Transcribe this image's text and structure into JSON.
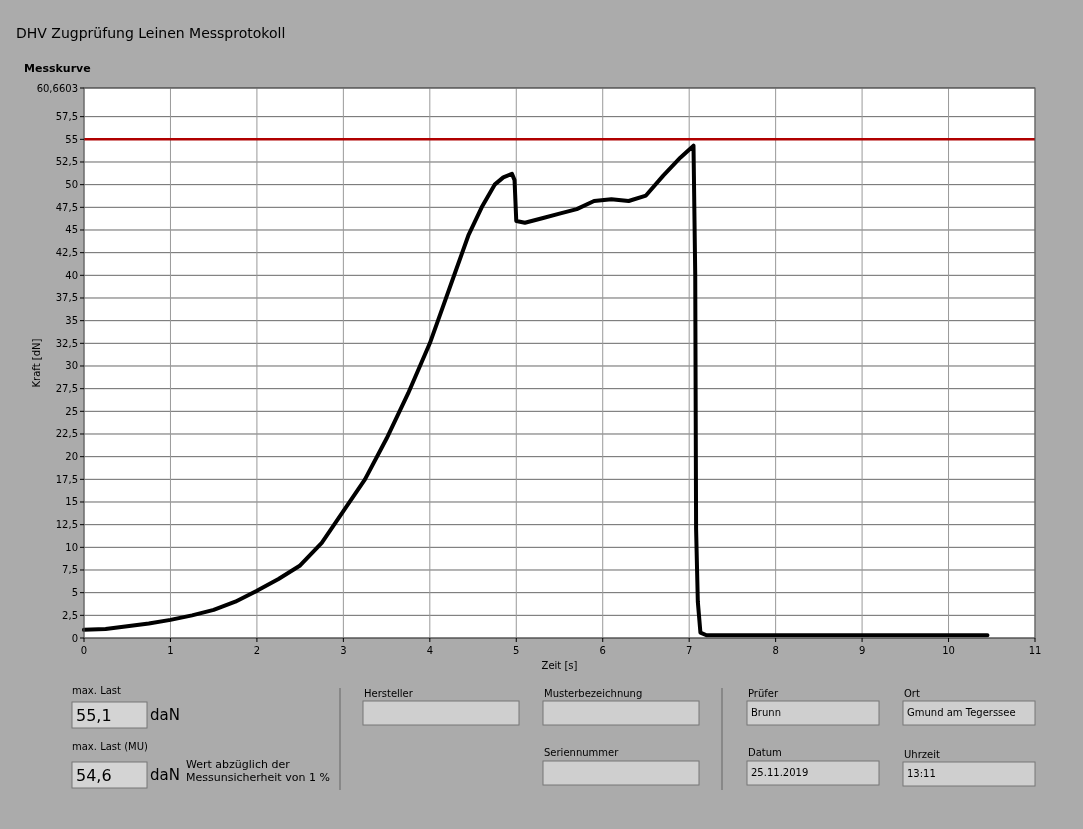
{
  "chart_data": {
    "type": "line",
    "title": "DHV Zugprüfung Leinen Messprotokoll",
    "subtitle": "Messkurve",
    "xlabel": "Zeit [s]",
    "ylabel": "Kraft [dN]",
    "xlim": [
      0,
      11
    ],
    "xticks": [
      0,
      1,
      2,
      3,
      4,
      5,
      6,
      7,
      8,
      9,
      10,
      11
    ],
    "ylim": [
      0,
      60.6603
    ],
    "yticks": [
      0,
      {
        "value": 2.5,
        "label": "2,5"
      },
      5,
      {
        "value": 7.5,
        "label": "7,5"
      },
      10,
      {
        "value": 12.5,
        "label": "12,5"
      },
      15,
      {
        "value": 17.5,
        "label": "17,5"
      },
      20,
      {
        "value": 22.5,
        "label": "22,5"
      },
      25,
      {
        "value": 27.5,
        "label": "27,5"
      },
      30,
      {
        "value": 32.5,
        "label": "32,5"
      },
      35,
      {
        "value": 37.5,
        "label": "37,5"
      },
      40,
      {
        "value": 42.5,
        "label": "42,5"
      },
      45,
      {
        "value": 47.5,
        "label": "47,5"
      },
      50,
      {
        "value": 52.5,
        "label": "52,5"
      },
      55,
      {
        "value": 57.5,
        "label": "57,5"
      },
      {
        "value": 60.6603,
        "label": "60,6603"
      }
    ],
    "grid": true,
    "series": [
      {
        "color": "#000000",
        "x": [
          0,
          0.25,
          0.5,
          0.75,
          1,
          1.25,
          1.5,
          1.75,
          2,
          2.25,
          2.5,
          2.75,
          3,
          3.25,
          3.5,
          3.75,
          4,
          4.15,
          4.3,
          4.45,
          4.6,
          4.75,
          4.85,
          4.95,
          4.98,
          5.0,
          5.1,
          5.3,
          5.5,
          5.7,
          5.9,
          6.1,
          6.3,
          6.5,
          6.7,
          6.9,
          7.05,
          7.07,
          7.08,
          7.1,
          7.13,
          7.2,
          8,
          9,
          10,
          10.45
        ],
        "values": [
          0.9,
          1.0,
          1.3,
          1.6,
          2.0,
          2.5,
          3.1,
          4.0,
          5.2,
          6.5,
          8.0,
          10.5,
          14.0,
          17.5,
          22.0,
          27.0,
          32.5,
          36.5,
          40.5,
          44.5,
          47.5,
          50.0,
          50.8,
          51.2,
          50.5,
          46.0,
          45.8,
          46.3,
          46.8,
          47.3,
          48.2,
          48.4,
          48.2,
          48.8,
          51.0,
          53.0,
          54.3,
          40.0,
          12.0,
          4.0,
          0.6,
          0.3,
          0.3,
          0.3,
          0.3,
          0.3
        ]
      }
    ],
    "ref_lines": [
      {
        "axis": "y",
        "value": 55,
        "color": "#b00000"
      }
    ],
    "annotations": [
      "max. Last",
      "55,1",
      "daN",
      "max. Last (MU)",
      "54,6",
      "daN",
      "Wert abzüglich der Messunsicherheit von 1 %",
      "Hersteller",
      "Musterbezeichnung",
      "Seriennummer",
      "Prüfer",
      "Brunn",
      "Datum",
      "25.11.2019",
      "Ort",
      "Gmund am Tegerssee",
      "Uhrzeit",
      "13:11"
    ]
  }
}
